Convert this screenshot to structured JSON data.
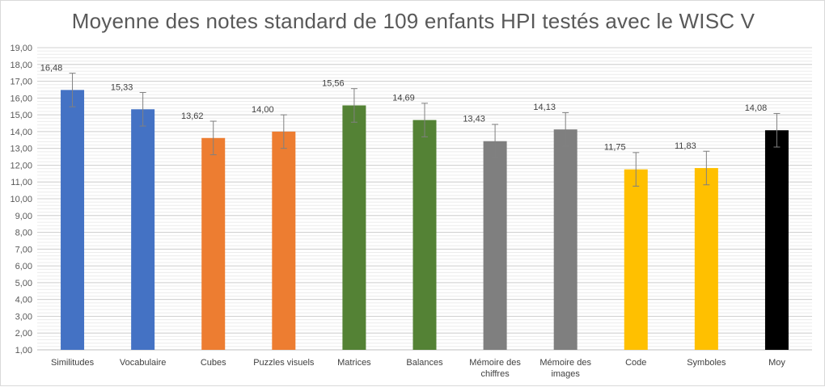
{
  "chart_data": {
    "type": "bar",
    "title": "Moyenne des notes standard de 109 enfants HPI testés avec le WISC V",
    "xlabel": "",
    "ylabel": "",
    "ylim": [
      1,
      19
    ],
    "ytick_step": 1,
    "yticks": [
      "1,00",
      "2,00",
      "3,00",
      "4,00",
      "5,00",
      "6,00",
      "7,00",
      "8,00",
      "9,00",
      "10,00",
      "11,00",
      "12,00",
      "13,00",
      "14,00",
      "15,00",
      "16,00",
      "17,00",
      "18,00",
      "19,00"
    ],
    "grid": true,
    "error_bar": 1,
    "categories": [
      [
        "Similitudes"
      ],
      [
        "Vocabulaire"
      ],
      [
        "Cubes"
      ],
      [
        "Puzzles visuels"
      ],
      [
        "Matrices"
      ],
      [
        "Balances"
      ],
      [
        "Mémoire des",
        "chiffres"
      ],
      [
        "Mémoire des",
        "images"
      ],
      [
        "Code"
      ],
      [
        "Symboles"
      ],
      [
        "Moy"
      ]
    ],
    "values": [
      16.48,
      15.33,
      13.62,
      14.0,
      15.56,
      14.69,
      13.43,
      14.13,
      11.75,
      11.83,
      14.08
    ],
    "value_labels": [
      "16,48",
      "15,33",
      "13,62",
      "14,00",
      "15,56",
      "14,69",
      "13,43",
      "14,13",
      "11,75",
      "11,83",
      "14,08"
    ],
    "colors": [
      "#4472c4",
      "#4472c4",
      "#ed7d31",
      "#ed7d31",
      "#548235",
      "#548235",
      "#7f7f7f",
      "#7f7f7f",
      "#ffc000",
      "#ffc000",
      "#000000"
    ]
  }
}
